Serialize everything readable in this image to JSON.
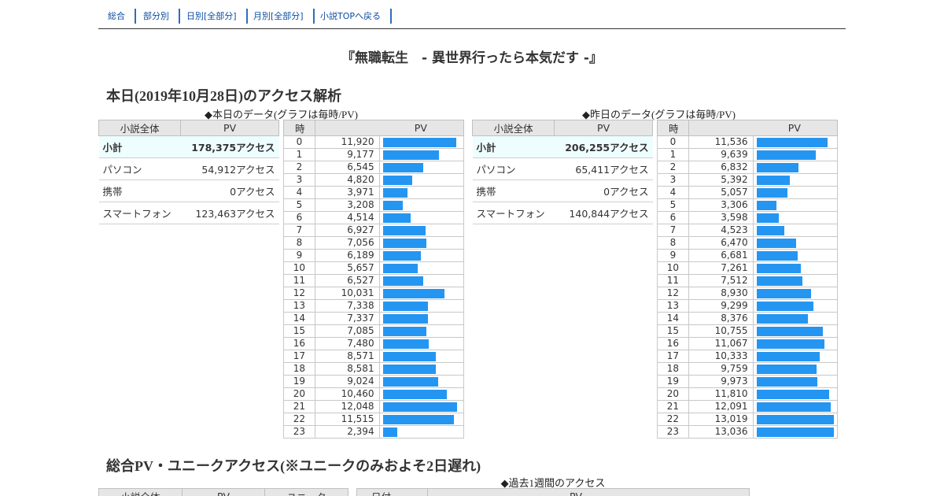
{
  "nav": [
    "総合",
    "部分別",
    "日別[全部分]",
    "月別[全部分]",
    "小説TOPへ戻る"
  ],
  "novel_title": "『無職転生　- 異世界行ったら本気だす -』",
  "today_heading": "本日(2019年10月28日)のアクセス解析",
  "today": {
    "caption": "◆本日のデータ(グラフは毎時/PV)",
    "summary_headers": [
      "小説全体",
      "PV"
    ],
    "summary_rows": [
      {
        "label": "小計",
        "value": "178,375アクセス"
      },
      {
        "label": "パソコン",
        "value": "54,912アクセス"
      },
      {
        "label": "携帯",
        "value": "0アクセス"
      },
      {
        "label": "スマートフォン",
        "value": "123,463アクセス"
      }
    ],
    "hourly_headers": [
      "時",
      "PV"
    ],
    "hours": [
      "0",
      "1",
      "2",
      "3",
      "4",
      "5",
      "6",
      "7",
      "8",
      "9",
      "10",
      "11",
      "12",
      "13",
      "14",
      "15",
      "16",
      "17",
      "18",
      "19",
      "20",
      "21",
      "22",
      "23"
    ],
    "pv_text": [
      "11,920",
      "9,177",
      "6,545",
      "4,820",
      "3,971",
      "3,208",
      "4,514",
      "6,927",
      "7,056",
      "6,189",
      "5,657",
      "6,527",
      "10,031",
      "7,338",
      "7,337",
      "7,085",
      "7,480",
      "8,571",
      "8,581",
      "9,024",
      "10,460",
      "12,048",
      "11,515",
      "2,394"
    ],
    "pv": [
      11920,
      9177,
      6545,
      4820,
      3971,
      3208,
      4514,
      6927,
      7056,
      6189,
      5657,
      6527,
      10031,
      7338,
      7337,
      7085,
      7480,
      8571,
      8581,
      9024,
      10460,
      12048,
      11515,
      2394
    ]
  },
  "yesterday": {
    "caption": "◆昨日のデータ(グラフは毎時/PV)",
    "summary_headers": [
      "小説全体",
      "PV"
    ],
    "summary_rows": [
      {
        "label": "小計",
        "value": "206,255アクセス"
      },
      {
        "label": "パソコン",
        "value": "65,411アクセス"
      },
      {
        "label": "携帯",
        "value": "0アクセス"
      },
      {
        "label": "スマートフォン",
        "value": "140,844アクセス"
      }
    ],
    "hourly_headers": [
      "時",
      "PV"
    ],
    "hours": [
      "0",
      "1",
      "2",
      "3",
      "4",
      "5",
      "6",
      "7",
      "8",
      "9",
      "10",
      "11",
      "12",
      "13",
      "14",
      "15",
      "16",
      "17",
      "18",
      "19",
      "20",
      "21",
      "22",
      "23"
    ],
    "pv_text": [
      "11,536",
      "9,639",
      "6,832",
      "5,392",
      "5,057",
      "3,306",
      "3,598",
      "4,523",
      "6,470",
      "6,681",
      "7,261",
      "7,512",
      "8,930",
      "9,299",
      "8,376",
      "10,755",
      "11,067",
      "10,333",
      "9,759",
      "9,973",
      "11,810",
      "12,091",
      "13,019",
      "13,036"
    ],
    "pv": [
      11536,
      9639,
      6832,
      5392,
      5057,
      3306,
      3598,
      4523,
      6470,
      6681,
      7261,
      7512,
      8930,
      9299,
      8376,
      10755,
      11067,
      10333,
      9759,
      9973,
      11810,
      12091,
      13019,
      13036
    ]
  },
  "bar_color": "#2496f2",
  "total_heading": "総合PV・ユニークアクセス(※ユニークのみおよそ2日遅れ)",
  "week_caption": "◆過去1週間のアクセス",
  "total_headers": [
    "小説全体",
    "PV",
    "ユニーク"
  ],
  "week_headers": [
    "日付",
    "PV"
  ]
}
